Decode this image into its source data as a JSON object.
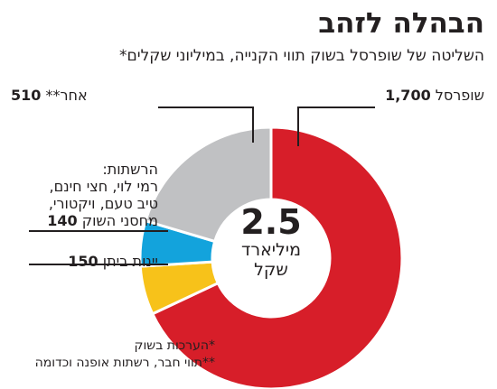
{
  "chart_data": {
    "type": "pie",
    "variant": "donut",
    "title": "הבהלה לזהב",
    "subtitle": "השליטה של שופרסל בשוק תווי הקנייה, במיליוני שקלים*",
    "center": {
      "value": "2.5",
      "unit_line1": "מיליארד",
      "unit_line2": "שקל"
    },
    "slices": [
      {
        "name": "שופרסל",
        "value": 1700,
        "value_label": "1,700",
        "color": "#d71e29"
      },
      {
        "name": "יינות ביתן",
        "value": 150,
        "value_label": "150",
        "color": "#f7c21a"
      },
      {
        "name_lines": [
          "הרשתות:",
          "רמי לוי, חצי חינם,",
          "טיב טעם, ויקטורי,",
          "מחסני השוק"
        ],
        "value": 140,
        "value_label": "140",
        "color": "#13a3dc"
      },
      {
        "name": "אחר**",
        "value": 510,
        "value_label": "510",
        "color": "#c0c1c3"
      }
    ],
    "footnotes": [
      "*הערכות בשוק",
      "**תווי חבר, רשתות אופנה וכדומה"
    ]
  }
}
